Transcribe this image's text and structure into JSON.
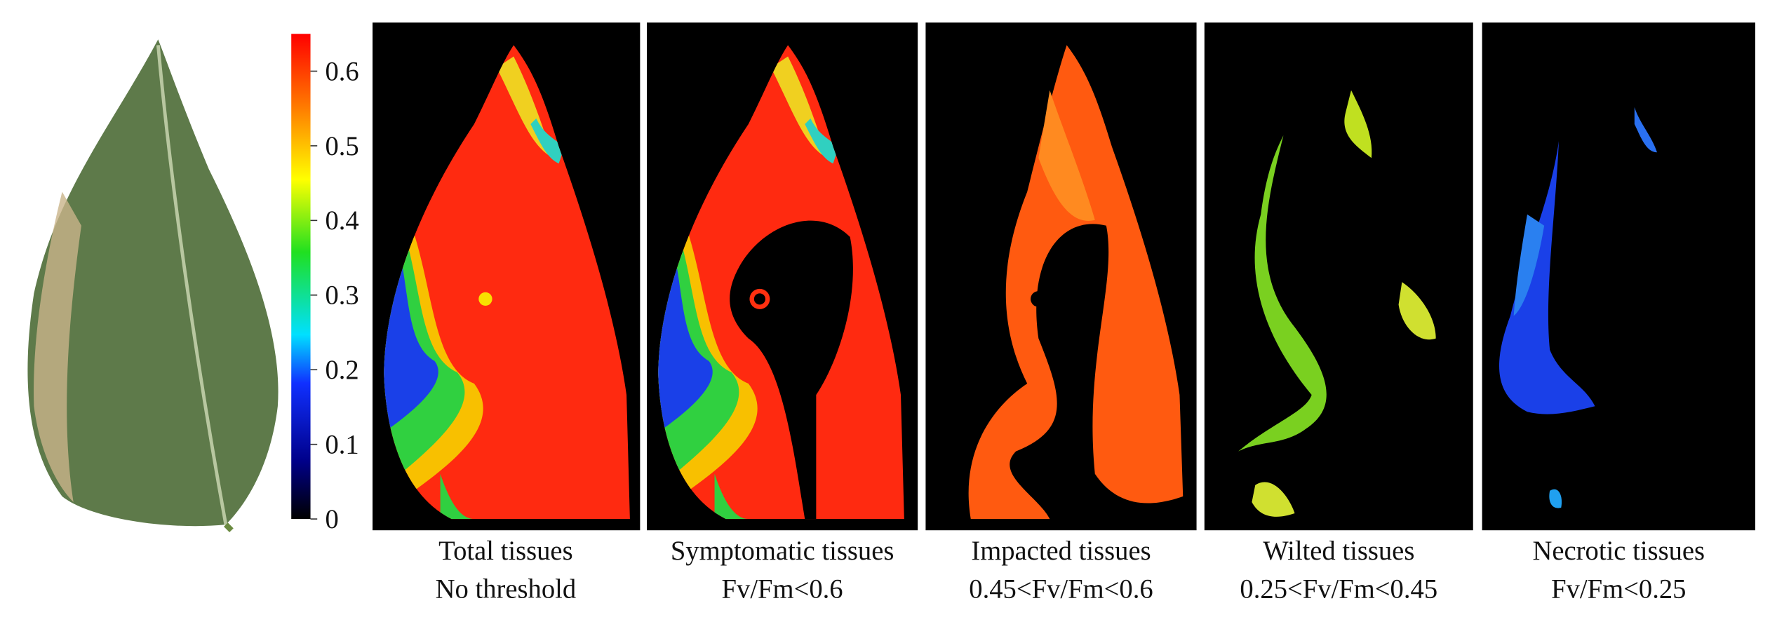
{
  "colorbar": {
    "range": [
      0,
      0.65
    ],
    "ticks": [
      0,
      0.1,
      0.2,
      0.3,
      0.4,
      0.5,
      0.6
    ]
  },
  "panels": [
    {
      "title": "Total tissues",
      "subtitle": "No threshold"
    },
    {
      "title": "Symptomatic tissues",
      "subtitle": "Fv/Fm<0.6"
    },
    {
      "title": "Impacted tissues",
      "subtitle": "0.45<Fv/Fm<0.6"
    },
    {
      "title": "Wilted tissues",
      "subtitle": "0.25<Fv/Fm<0.45"
    },
    {
      "title": "Necrotic tissues",
      "subtitle": "Fv/Fm<0.25"
    }
  ]
}
